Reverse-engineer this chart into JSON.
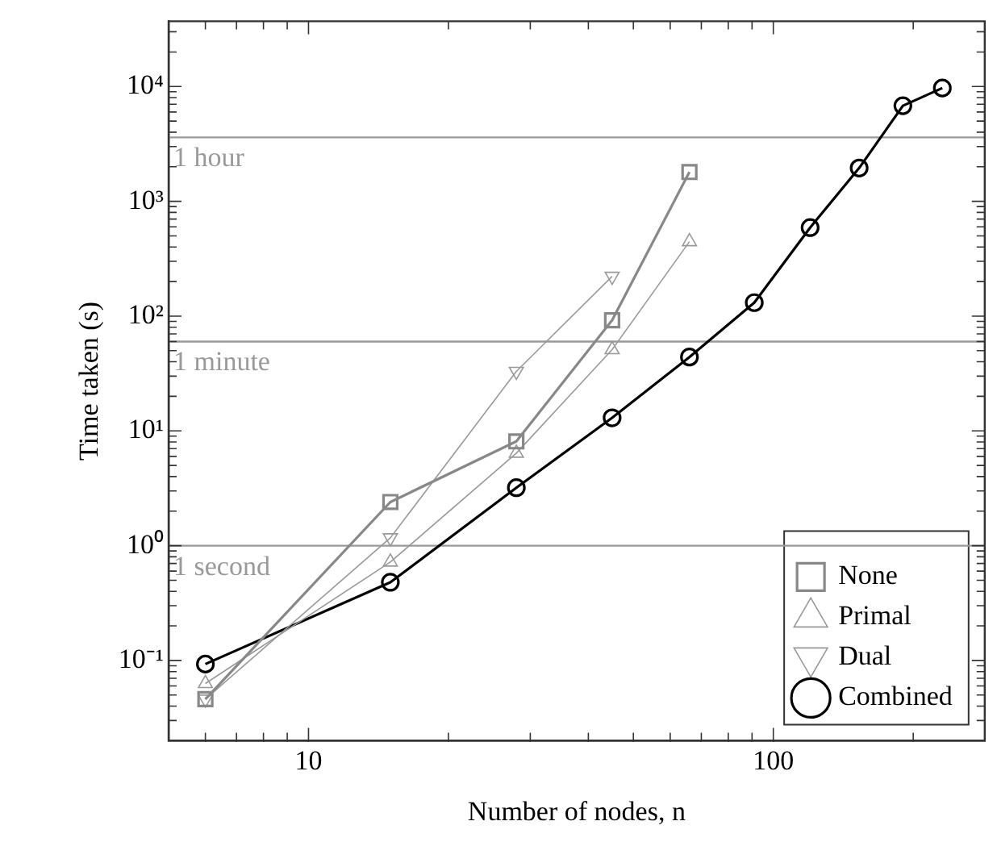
{
  "chart_data": {
    "type": "line",
    "xlabel": "Number of nodes, n",
    "ylabel": "Time taken (s)",
    "log": "xy",
    "legend": "bottom right",
    "xlim": [
      5,
      285
    ],
    "ylim": [
      0.02,
      37000
    ],
    "xticks": [
      {
        "value": 6,
        "label": null
      },
      {
        "value": 7,
        "label": null
      },
      {
        "value": 8,
        "label": null
      },
      {
        "value": 9,
        "label": null
      },
      10,
      {
        "value": 20,
        "label": null
      },
      {
        "value": 30,
        "label": null
      },
      {
        "value": 40,
        "label": null
      },
      {
        "value": 50,
        "label": null
      },
      {
        "value": 60,
        "label": null
      },
      {
        "value": 70,
        "label": null
      },
      {
        "value": 80,
        "label": null
      },
      {
        "value": 90,
        "label": null
      },
      100,
      {
        "value": 200,
        "label": null
      }
    ],
    "yticks": [
      {
        "value": 0.03,
        "label": null
      },
      {
        "value": 0.04,
        "label": null
      },
      {
        "value": 0.05,
        "label": null
      },
      {
        "value": 0.06,
        "label": null
      },
      {
        "value": 0.07,
        "label": null
      },
      {
        "value": 0.08,
        "label": null
      },
      {
        "value": 0.09,
        "label": null
      },
      {
        "value": 0.1,
        "label": "10⁻¹"
      },
      {
        "value": 0.2,
        "label": null
      },
      {
        "value": 0.3,
        "label": null
      },
      {
        "value": 0.4,
        "label": null
      },
      {
        "value": 0.5,
        "label": null
      },
      {
        "value": 0.6,
        "label": null
      },
      {
        "value": 0.7,
        "label": null
      },
      {
        "value": 0.8,
        "label": null
      },
      {
        "value": 0.9,
        "label": null
      },
      {
        "value": 1,
        "label": "10⁰"
      },
      {
        "value": 2,
        "label": null
      },
      {
        "value": 3,
        "label": null
      },
      {
        "value": 4,
        "label": null
      },
      {
        "value": 5,
        "label": null
      },
      {
        "value": 6,
        "label": null
      },
      {
        "value": 7,
        "label": null
      },
      {
        "value": 8,
        "label": null
      },
      {
        "value": 9,
        "label": null
      },
      {
        "value": 10,
        "label": "10¹"
      },
      {
        "value": 20,
        "label": null
      },
      {
        "value": 30,
        "label": null
      },
      {
        "value": 40,
        "label": null
      },
      {
        "value": 50,
        "label": null
      },
      {
        "value": 60,
        "label": null
      },
      {
        "value": 70,
        "label": null
      },
      {
        "value": 80,
        "label": null
      },
      {
        "value": 90,
        "label": null
      },
      {
        "value": 100,
        "label": "10²"
      },
      {
        "value": 200,
        "label": null
      },
      {
        "value": 300,
        "label": null
      },
      {
        "value": 400,
        "label": null
      },
      {
        "value": 500,
        "label": null
      },
      {
        "value": 600,
        "label": null
      },
      {
        "value": 700,
        "label": null
      },
      {
        "value": 800,
        "label": null
      },
      {
        "value": 900,
        "label": null
      },
      {
        "value": 1000,
        "label": "10³"
      },
      {
        "value": 2000,
        "label": null
      },
      {
        "value": 3000,
        "label": null
      },
      {
        "value": 4000,
        "label": null
      },
      {
        "value": 5000,
        "label": null
      },
      {
        "value": 6000,
        "label": null
      },
      {
        "value": 7000,
        "label": null
      },
      {
        "value": 8000,
        "label": null
      },
      {
        "value": 9000,
        "label": null
      },
      {
        "value": 10000,
        "label": "10⁴"
      },
      {
        "value": 20000,
        "label": null
      },
      {
        "value": 30000,
        "label": null
      }
    ],
    "ref_lines": [
      {
        "axis": "y",
        "value": 1,
        "label": "1 second",
        "color": "#999999"
      },
      {
        "axis": "y",
        "value": 60,
        "label": "1 minute",
        "color": "#999999"
      },
      {
        "axis": "y",
        "value": 3600,
        "label": "1 hour",
        "color": "#999999"
      }
    ],
    "series": [
      {
        "name": "None",
        "color": "#888888",
        "marker": "square",
        "x": [
          6,
          15,
          28,
          45,
          66
        ],
        "values": [
          0.046,
          2.4,
          8.1,
          92,
          1800
        ]
      },
      {
        "name": "Primal",
        "color": "#999999",
        "marker": "triangle",
        "x": [
          6,
          15,
          28,
          45,
          66
        ],
        "values": [
          0.063,
          0.72,
          6.4,
          51,
          445
        ]
      },
      {
        "name": "Dual",
        "color": "#999999",
        "marker": "triangle-down",
        "x": [
          6,
          15,
          28,
          45
        ],
        "values": [
          0.046,
          1.17,
          33,
          222
        ]
      },
      {
        "name": "Combined",
        "color": "#000000",
        "marker": "circle",
        "x": [
          6,
          15,
          28,
          45,
          66,
          91,
          120,
          153,
          190,
          231
        ],
        "values": [
          0.093,
          0.48,
          3.2,
          13,
          44,
          131,
          590,
          1950,
          6800,
          9700
        ]
      }
    ]
  }
}
